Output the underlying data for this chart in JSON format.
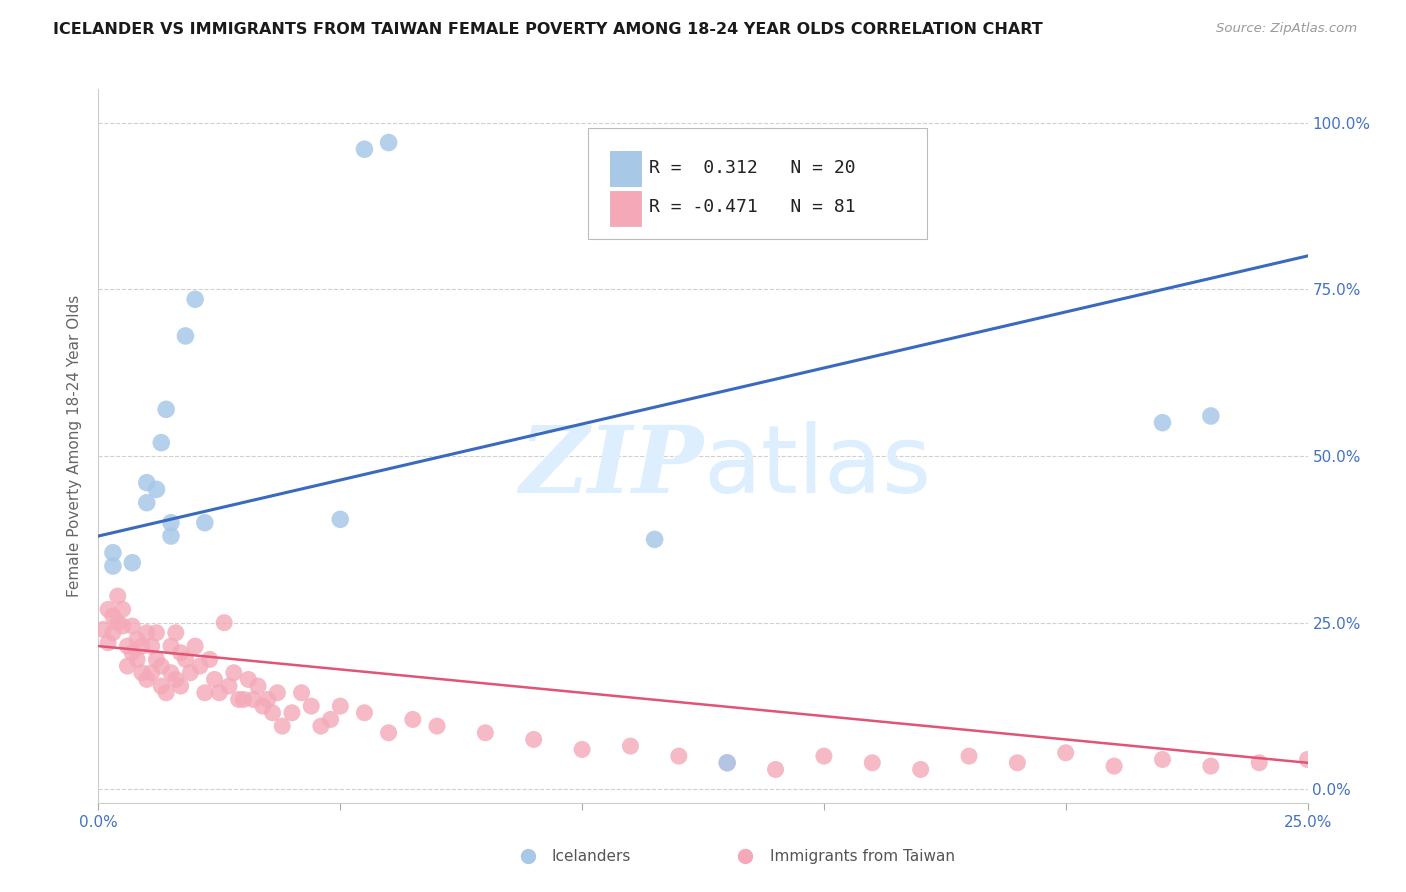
{
  "title": "ICELANDER VS IMMIGRANTS FROM TAIWAN FEMALE POVERTY AMONG 18-24 YEAR OLDS CORRELATION CHART",
  "source": "Source: ZipAtlas.com",
  "ylabel": "Female Poverty Among 18-24 Year Olds",
  "xlim": [
    0.0,
    0.25
  ],
  "ylim": [
    -0.02,
    1.05
  ],
  "yticks": [
    0.0,
    0.25,
    0.5,
    0.75,
    1.0
  ],
  "ytick_labels": [
    "0.0%",
    "25.0%",
    "50.0%",
    "75.0%",
    "100.0%"
  ],
  "xticks": [
    0.0,
    0.05,
    0.1,
    0.15,
    0.2,
    0.25
  ],
  "xtick_labels": [
    "0.0%",
    "",
    "",
    "",
    "",
    "25.0%"
  ],
  "icelanders_R": 0.312,
  "icelanders_N": 20,
  "taiwan_R": -0.471,
  "taiwan_N": 81,
  "icelander_color": "#a8c8e8",
  "taiwan_color": "#f4a8b8",
  "icelander_line_color": "#3a6abf",
  "taiwan_line_color": "#e05575",
  "background_color": "#ffffff",
  "grid_color": "#d0d0d0",
  "watermark_color": "#ddeeff",
  "icelanders_x": [
    0.003,
    0.003,
    0.007,
    0.01,
    0.01,
    0.012,
    0.013,
    0.014,
    0.015,
    0.015,
    0.018,
    0.02,
    0.022,
    0.05,
    0.055,
    0.06,
    0.115,
    0.13,
    0.22,
    0.23
  ],
  "icelanders_y": [
    0.335,
    0.355,
    0.34,
    0.43,
    0.46,
    0.45,
    0.52,
    0.57,
    0.38,
    0.4,
    0.68,
    0.735,
    0.4,
    0.405,
    0.96,
    0.97,
    0.375,
    0.04,
    0.55,
    0.56
  ],
  "taiwan_x": [
    0.001,
    0.002,
    0.002,
    0.003,
    0.003,
    0.004,
    0.004,
    0.005,
    0.005,
    0.006,
    0.006,
    0.007,
    0.007,
    0.008,
    0.008,
    0.009,
    0.009,
    0.01,
    0.01,
    0.011,
    0.011,
    0.012,
    0.012,
    0.013,
    0.013,
    0.014,
    0.015,
    0.015,
    0.016,
    0.016,
    0.017,
    0.017,
    0.018,
    0.019,
    0.02,
    0.021,
    0.022,
    0.023,
    0.024,
    0.025,
    0.026,
    0.027,
    0.028,
    0.029,
    0.03,
    0.031,
    0.032,
    0.033,
    0.034,
    0.035,
    0.036,
    0.037,
    0.038,
    0.04,
    0.042,
    0.044,
    0.046,
    0.048,
    0.05,
    0.055,
    0.06,
    0.065,
    0.07,
    0.08,
    0.09,
    0.1,
    0.11,
    0.12,
    0.13,
    0.14,
    0.15,
    0.16,
    0.17,
    0.18,
    0.19,
    0.2,
    0.21,
    0.22,
    0.23,
    0.24,
    0.25
  ],
  "taiwan_y": [
    0.24,
    0.27,
    0.22,
    0.235,
    0.26,
    0.25,
    0.29,
    0.245,
    0.27,
    0.215,
    0.185,
    0.245,
    0.205,
    0.225,
    0.195,
    0.215,
    0.175,
    0.165,
    0.235,
    0.215,
    0.175,
    0.235,
    0.195,
    0.155,
    0.185,
    0.145,
    0.215,
    0.175,
    0.235,
    0.165,
    0.205,
    0.155,
    0.195,
    0.175,
    0.215,
    0.185,
    0.145,
    0.195,
    0.165,
    0.145,
    0.25,
    0.155,
    0.175,
    0.135,
    0.135,
    0.165,
    0.135,
    0.155,
    0.125,
    0.135,
    0.115,
    0.145,
    0.095,
    0.115,
    0.145,
    0.125,
    0.095,
    0.105,
    0.125,
    0.115,
    0.085,
    0.105,
    0.095,
    0.085,
    0.075,
    0.06,
    0.065,
    0.05,
    0.04,
    0.03,
    0.05,
    0.04,
    0.03,
    0.05,
    0.04,
    0.055,
    0.035,
    0.045,
    0.035,
    0.04,
    0.045
  ],
  "ice_line_x0": 0.0,
  "ice_line_y0": 0.38,
  "ice_line_x1": 0.25,
  "ice_line_y1": 0.8,
  "tw_line_x0": 0.0,
  "tw_line_y0": 0.215,
  "tw_line_x1": 0.25,
  "tw_line_y1": 0.04
}
